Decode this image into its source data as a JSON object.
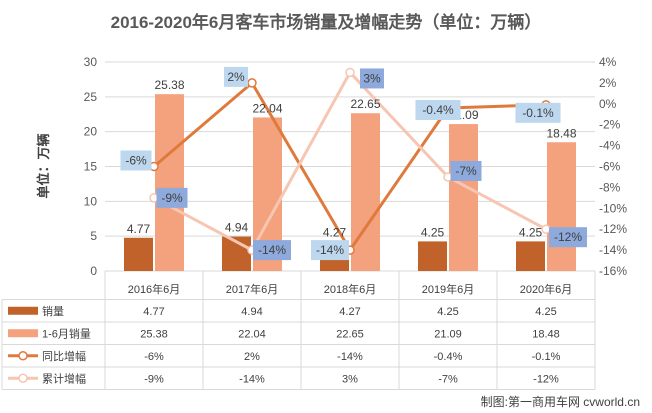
{
  "chart_data": {
    "type": "bar",
    "title": "2016-2020年6月客车市场销量及增幅走势（单位：万辆）",
    "ylabel": "单位：万辆",
    "categories": [
      "2016年6月",
      "2017年6月",
      "2018年6月",
      "2019年6月",
      "2020年6月"
    ],
    "ylim": [
      0,
      30
    ],
    "yticks": [
      0,
      5,
      10,
      15,
      20,
      25,
      30
    ],
    "y2lim": [
      -16,
      4
    ],
    "y2ticks": [
      "4%",
      "2%",
      "0%",
      "-2%",
      "-4%",
      "-6%",
      "-8%",
      "-10%",
      "-12%",
      "-14%",
      "-16%"
    ],
    "series": [
      {
        "name": "销量",
        "type": "bar",
        "axis": "left",
        "color": "#C0622A",
        "values": [
          4.77,
          4.94,
          4.27,
          4.25,
          4.25
        ],
        "labels": [
          "4.77",
          "4.94",
          "4.27",
          "4.25",
          "4.25"
        ]
      },
      {
        "name": "1-6月销量",
        "type": "bar",
        "axis": "left",
        "color": "#F4A17E",
        "values": [
          25.38,
          22.04,
          22.65,
          21.09,
          18.48
        ],
        "labels": [
          "25.38",
          "22.04",
          "22.65",
          "21.09",
          "18.48"
        ]
      },
      {
        "name": "同比增幅",
        "type": "line",
        "axis": "right",
        "color": "#E07A3C",
        "values": [
          -6,
          2,
          -14,
          -0.4,
          -0.1
        ],
        "labels": [
          "-6%",
          "2%",
          "-14%",
          "-0.4%",
          "-0.1%"
        ]
      },
      {
        "name": "累计增幅",
        "type": "line",
        "axis": "right",
        "color": "#F6C6B2",
        "values": [
          -9,
          -14,
          3,
          -7,
          -12
        ],
        "labels": [
          "-9%",
          "-14%",
          "3%",
          "-7%",
          "-12%"
        ]
      }
    ],
    "grid": true,
    "legend": "data-table",
    "colors": {
      "grid": "#D9D9D9",
      "label_box_light": "#BDD7EE",
      "label_box_dark": "#8EA9DB",
      "text": "#595959"
    }
  },
  "credit": "制图:第一商用车网 cvworld.cn"
}
